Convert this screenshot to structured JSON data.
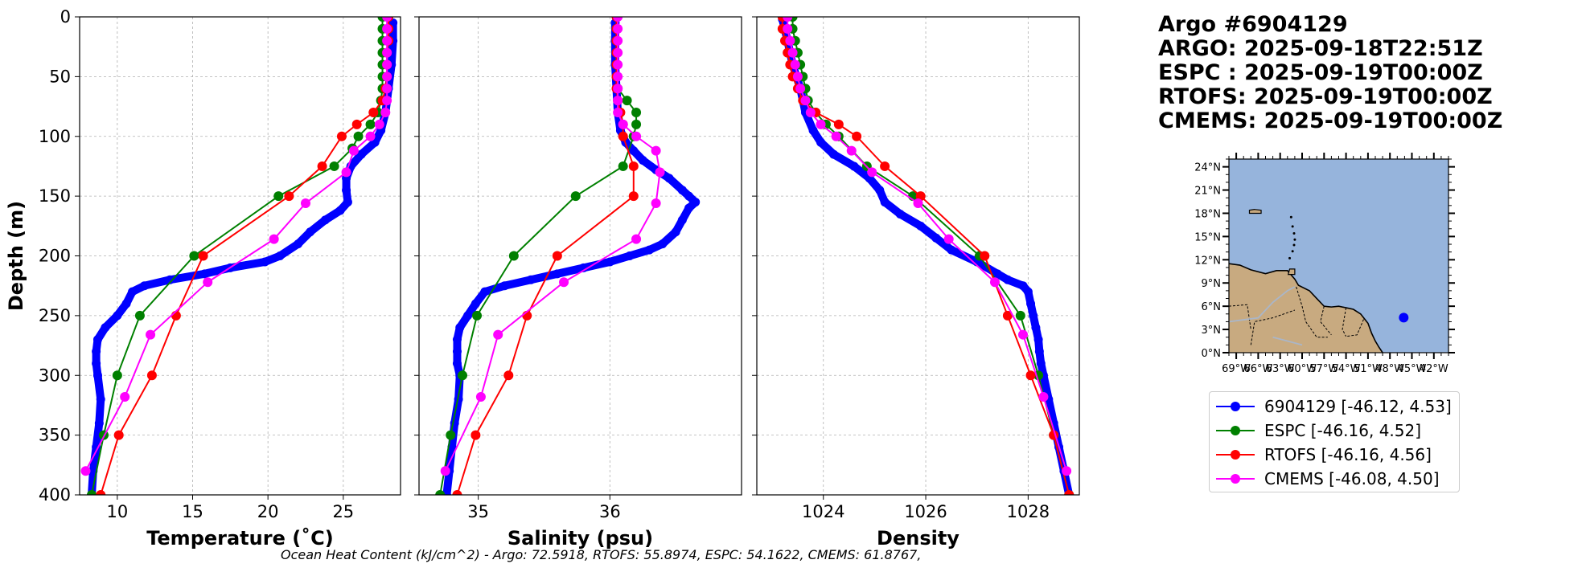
{
  "header": {
    "lines": [
      "Argo #6904129",
      "ARGO: 2025-09-18T22:51Z",
      "ESPC : 2025-09-19T00:00Z",
      "RTOFS: 2025-09-19T00:00Z",
      "CMEMS: 2025-09-19T00:00Z"
    ]
  },
  "footer": {
    "text": "Ocean Heat Content (kJ/cm^2) - Argo: 72.5918,  RTOFS: 55.8974,  ESPC: 54.1622,  CMEMS: 61.8767,"
  },
  "colors": {
    "argo": "#0000ff",
    "espc": "#008000",
    "rtofs": "#ff0000",
    "cmems": "#ff00ff",
    "ocean": "#96b4dc",
    "land": "#c8aa80"
  },
  "legend": {
    "entries": [
      {
        "label": "6904129 [-46.12, 4.53]",
        "color": "#0000ff"
      },
      {
        "label": "ESPC [-46.16, 4.52]",
        "color": "#008000"
      },
      {
        "label": "RTOFS [-46.16, 4.56]",
        "color": "#ff0000"
      },
      {
        "label": "CMEMS [-46.08, 4.50]",
        "color": "#ff00ff"
      }
    ]
  },
  "chart_data": [
    {
      "type": "line",
      "title": "",
      "xlabel": "Temperature (˚C)",
      "ylabel": "Depth (m)",
      "xlim": [
        7.5,
        28.8
      ],
      "ylim": [
        400,
        0
      ],
      "xticks": [
        10,
        15,
        20,
        25
      ],
      "yticks": [
        0,
        50,
        100,
        150,
        200,
        250,
        300,
        350,
        400
      ],
      "grid": true,
      "argo_profile": {
        "name": "6904129",
        "depth": [
          5,
          20,
          40,
          60,
          80,
          95,
          105,
          115,
          125,
          135,
          145,
          155,
          162,
          170,
          180,
          190,
          200,
          205,
          210,
          215,
          220,
          225,
          230,
          240,
          250,
          260,
          270,
          280,
          290,
          300,
          320,
          340,
          360,
          380,
          400
        ],
        "value": [
          28.3,
          28.3,
          28.2,
          28.0,
          27.8,
          27.5,
          27.1,
          26.2,
          25.5,
          25.2,
          25.2,
          25.3,
          24.8,
          23.8,
          22.8,
          22.0,
          20.8,
          19.8,
          17.5,
          15.8,
          13.5,
          11.8,
          11.0,
          10.6,
          10.0,
          9.2,
          8.7,
          8.6,
          8.6,
          8.7,
          8.9,
          8.8,
          8.6,
          8.4,
          8.3
        ]
      },
      "series": [
        {
          "name": "ESPC",
          "depth": [
            0,
            10,
            20,
            30,
            40,
            50,
            60,
            70,
            80,
            90,
            100,
            110,
            125,
            150,
            200,
            250,
            300,
            350,
            400
          ],
          "value": [
            27.6,
            27.6,
            27.6,
            27.6,
            27.6,
            27.6,
            27.6,
            27.5,
            27.3,
            26.8,
            26.0,
            25.6,
            24.4,
            20.7,
            15.1,
            11.5,
            10.0,
            9.1,
            8.3
          ]
        },
        {
          "name": "RTOFS",
          "depth": [
            0,
            10,
            20,
            30,
            40,
            50,
            60,
            70,
            80,
            90,
            100,
            125,
            150,
            200,
            250,
            300,
            350,
            400
          ],
          "value": [
            28.0,
            28.0,
            28.0,
            27.9,
            27.9,
            27.9,
            27.8,
            27.6,
            27.0,
            25.9,
            24.9,
            23.6,
            21.4,
            15.7,
            13.9,
            12.3,
            10.1,
            8.9
          ]
        },
        {
          "name": "CMEMS",
          "depth": [
            0,
            10,
            20,
            30,
            40,
            50,
            60,
            70,
            80,
            90,
            100,
            112,
            130,
            156,
            186,
            222,
            266,
            318,
            380
          ],
          "value": [
            27.9,
            27.9,
            27.9,
            27.9,
            27.9,
            27.9,
            27.9,
            27.9,
            27.8,
            27.4,
            26.8,
            25.7,
            25.2,
            22.5,
            20.4,
            16.0,
            12.2,
            10.5,
            7.9
          ]
        }
      ]
    },
    {
      "type": "line",
      "title": "",
      "xlabel": "Salinity (psu)",
      "ylabel": "",
      "xlim": [
        34.55,
        37.0
      ],
      "ylim": [
        400,
        0
      ],
      "xticks": [
        35,
        36
      ],
      "yticks": [
        0,
        50,
        100,
        150,
        200,
        250,
        300,
        350,
        400
      ],
      "grid": true,
      "argo_profile": {
        "name": "6904129",
        "depth": [
          5,
          20,
          40,
          60,
          80,
          95,
          105,
          112,
          120,
          128,
          135,
          145,
          150,
          155,
          160,
          170,
          180,
          190,
          195,
          200,
          205,
          210,
          215,
          220,
          225,
          230,
          240,
          250,
          260,
          270,
          280,
          290,
          300,
          320,
          340,
          360,
          380,
          400
        ],
        "value": [
          36.04,
          36.04,
          36.04,
          36.05,
          36.06,
          36.08,
          36.12,
          36.18,
          36.25,
          36.35,
          36.45,
          36.55,
          36.6,
          36.65,
          36.6,
          36.55,
          36.5,
          36.4,
          36.3,
          36.15,
          36.0,
          35.8,
          35.6,
          35.4,
          35.2,
          35.05,
          34.98,
          34.92,
          34.86,
          34.84,
          34.84,
          34.84,
          34.86,
          34.85,
          34.82,
          34.8,
          34.78,
          34.76
        ]
      },
      "series": [
        {
          "name": "ESPC",
          "depth": [
            0,
            10,
            20,
            30,
            40,
            50,
            60,
            70,
            80,
            90,
            100,
            125,
            150,
            200,
            250,
            300,
            350,
            400
          ],
          "value": [
            36.05,
            36.05,
            36.05,
            36.05,
            36.05,
            36.05,
            36.06,
            36.13,
            36.2,
            36.2,
            36.18,
            36.1,
            35.74,
            35.27,
            34.99,
            34.88,
            34.79,
            34.71
          ]
        },
        {
          "name": "RTOFS",
          "depth": [
            0,
            10,
            20,
            30,
            40,
            50,
            60,
            70,
            80,
            90,
            100,
            125,
            150,
            200,
            250,
            300,
            350,
            400
          ],
          "value": [
            36.05,
            36.05,
            36.05,
            36.05,
            36.05,
            36.05,
            36.05,
            36.06,
            36.08,
            36.1,
            36.1,
            36.18,
            36.18,
            35.6,
            35.37,
            35.23,
            34.98,
            34.84
          ]
        },
        {
          "name": "CMEMS",
          "depth": [
            0,
            10,
            20,
            30,
            40,
            50,
            60,
            70,
            80,
            90,
            100,
            112,
            130,
            156,
            186,
            222,
            266,
            318,
            380
          ],
          "value": [
            36.06,
            36.06,
            36.06,
            36.06,
            36.06,
            36.06,
            36.06,
            36.06,
            36.06,
            36.1,
            36.2,
            36.35,
            36.38,
            36.35,
            36.2,
            35.65,
            35.15,
            35.02,
            34.75
          ]
        }
      ]
    },
    {
      "type": "line",
      "title": "",
      "xlabel": "Density",
      "ylabel": "",
      "xlim": [
        1022.7,
        1029.0
      ],
      "ylim": [
        400,
        0
      ],
      "xticks": [
        1024,
        1026,
        1028
      ],
      "yticks": [
        0,
        50,
        100,
        150,
        200,
        250,
        300,
        350,
        400
      ],
      "grid": true,
      "argo_profile": {
        "name": "6904129",
        "depth": [
          2,
          20,
          40,
          60,
          80,
          95,
          105,
          115,
          125,
          135,
          145,
          155,
          165,
          175,
          185,
          195,
          205,
          215,
          220,
          225,
          230,
          240,
          250,
          260,
          270,
          280,
          290,
          300,
          320,
          340,
          360,
          380,
          400
        ],
        "value": [
          1023.2,
          1023.3,
          1023.4,
          1023.55,
          1023.65,
          1023.8,
          1023.95,
          1024.2,
          1024.6,
          1024.9,
          1025.1,
          1025.2,
          1025.5,
          1025.9,
          1026.2,
          1026.5,
          1027.0,
          1027.4,
          1027.6,
          1027.9,
          1028.0,
          1028.05,
          1028.1,
          1028.15,
          1028.2,
          1028.22,
          1028.25,
          1028.3,
          1028.4,
          1028.5,
          1028.6,
          1028.7,
          1028.8
        ]
      },
      "series": [
        {
          "name": "ESPC",
          "depth": [
            0,
            10,
            20,
            30,
            40,
            50,
            60,
            70,
            80,
            90,
            100,
            125,
            150,
            200,
            250,
            300,
            350,
            400
          ],
          "value": [
            1023.4,
            1023.4,
            1023.45,
            1023.5,
            1023.55,
            1023.6,
            1023.65,
            1023.7,
            1023.85,
            1024.05,
            1024.3,
            1024.85,
            1025.75,
            1027.05,
            1027.85,
            1028.2,
            1028.5,
            1028.8
          ]
        },
        {
          "name": "RTOFS",
          "depth": [
            0,
            10,
            20,
            30,
            40,
            50,
            60,
            70,
            80,
            90,
            100,
            125,
            150,
            200,
            250,
            300,
            350,
            400
          ],
          "value": [
            1023.2,
            1023.2,
            1023.25,
            1023.3,
            1023.35,
            1023.4,
            1023.5,
            1023.6,
            1023.85,
            1024.3,
            1024.65,
            1025.2,
            1025.9,
            1027.15,
            1027.6,
            1028.05,
            1028.5,
            1028.8
          ]
        },
        {
          "name": "CMEMS",
          "depth": [
            0,
            10,
            20,
            30,
            40,
            50,
            60,
            70,
            80,
            90,
            100,
            112,
            130,
            156,
            186,
            222,
            266,
            318,
            380
          ],
          "value": [
            1023.3,
            1023.3,
            1023.35,
            1023.4,
            1023.45,
            1023.5,
            1023.55,
            1023.65,
            1023.75,
            1023.95,
            1024.25,
            1024.55,
            1024.95,
            1025.85,
            1026.45,
            1027.35,
            1027.9,
            1028.3,
            1028.75
          ]
        }
      ]
    },
    {
      "type": "map",
      "title": "",
      "lon_range": [
        -70,
        -40
      ],
      "lat_range": [
        0,
        25
      ],
      "lon_ticks": [
        "69°W",
        "66°W",
        "63°W",
        "60°W",
        "57°W",
        "54°W",
        "51°W",
        "48°W",
        "45°W",
        "42°W"
      ],
      "lat_ticks": [
        "0°N",
        "3°N",
        "6°N",
        "9°N",
        "12°N",
        "15°N",
        "18°N",
        "21°N",
        "24°N"
      ],
      "marker": {
        "lon": -46.12,
        "lat": 4.53
      },
      "coastline": [
        [
          -70,
          11.5
        ],
        [
          -68.5,
          11.3
        ],
        [
          -67,
          10.7
        ],
        [
          -65,
          10.2
        ],
        [
          -63.5,
          10.6
        ],
        [
          -62,
          10.6
        ],
        [
          -61,
          9.5
        ],
        [
          -60.5,
          8.7
        ],
        [
          -59,
          8
        ],
        [
          -58,
          7
        ],
        [
          -57,
          6
        ],
        [
          -56,
          5.9
        ],
        [
          -55,
          6
        ],
        [
          -54,
          5.8
        ],
        [
          -53,
          5.6
        ],
        [
          -52,
          5
        ],
        [
          -51.5,
          4.4
        ],
        [
          -51,
          3.8
        ],
        [
          -50.5,
          2.5
        ],
        [
          -50,
          1.5
        ],
        [
          -49.5,
          0.7
        ],
        [
          -49,
          0
        ]
      ],
      "islands": [
        [
          [
            -66.5,
            18.5
          ],
          [
            -65.6,
            18.4
          ],
          [
            -65.6,
            18.0
          ],
          [
            -67.2,
            18.0
          ],
          [
            -67.2,
            18.4
          ]
        ],
        [
          [
            -61.7,
            10.8
          ],
          [
            -61,
            10.8
          ],
          [
            -61,
            10.1
          ],
          [
            -61.9,
            10.1
          ]
        ]
      ]
    }
  ]
}
